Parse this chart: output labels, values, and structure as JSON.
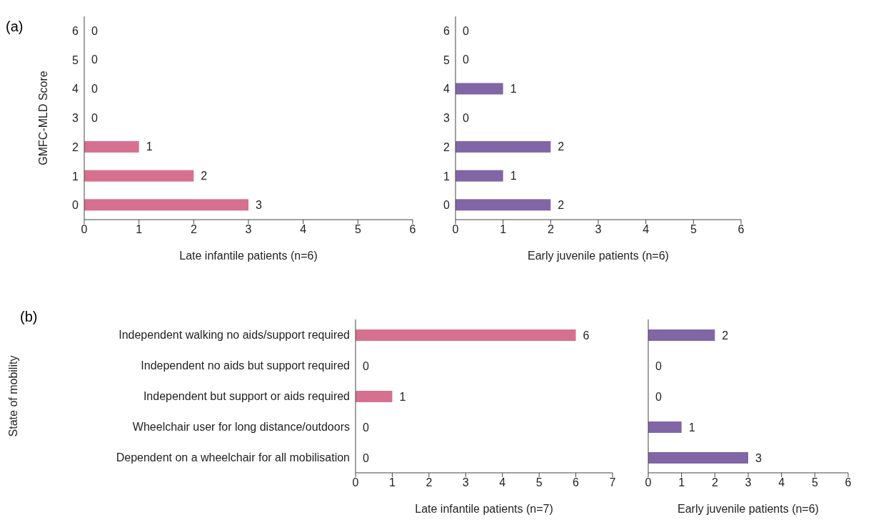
{
  "chart_data": [
    {
      "type": "bar",
      "orientation": "horizontal",
      "categories": [
        "6",
        "5",
        "4",
        "3",
        "2",
        "1",
        "0"
      ],
      "values": [
        0,
        0,
        0,
        0,
        1,
        2,
        3
      ],
      "color": "#d6708f",
      "xlim": [
        0,
        6
      ],
      "xticks": [
        0,
        1,
        2,
        3,
        4,
        5,
        6
      ],
      "xlabel": "Late infantile patients (n=6)",
      "ylabel": "GMFC-MLD  Score",
      "data_labels": true,
      "grid": false,
      "annotations": [
        "(a)"
      ]
    },
    {
      "type": "bar",
      "orientation": "horizontal",
      "categories": [
        "6",
        "5",
        "4",
        "3",
        "2",
        "1",
        "0"
      ],
      "values": [
        0,
        0,
        1,
        0,
        2,
        1,
        2
      ],
      "color": "#8166a6",
      "xlim": [
        0,
        6
      ],
      "xticks": [
        0,
        1,
        2,
        3,
        4,
        5,
        6
      ],
      "xlabel": "Early juvenile patients (n=6)",
      "data_labels": true,
      "grid": false
    },
    {
      "type": "bar",
      "orientation": "horizontal",
      "categories": [
        "Independent walking no aids/support required",
        "Independent no aids but support required",
        "Independent but support or aids required",
        "Wheelchair user for long distance/outdoors",
        "Dependent on a wheelchair for all mobilisation"
      ],
      "values": [
        6,
        0,
        1,
        0,
        0
      ],
      "color": "#d6708f",
      "xlim": [
        0,
        7
      ],
      "xticks": [
        0,
        1,
        2,
        3,
        4,
        5,
        6,
        7
      ],
      "xlabel": "Late infantile patients (n=7)",
      "ylabel": "State of mobility",
      "data_labels": true,
      "grid": false,
      "annotations": [
        "(b)"
      ]
    },
    {
      "type": "bar",
      "orientation": "horizontal",
      "categories": [
        null,
        null,
        null,
        null,
        null
      ],
      "values": [
        2,
        0,
        0,
        1,
        3
      ],
      "color": "#8166a6",
      "xlim": [
        0,
        6
      ],
      "xticks": [
        0,
        1,
        2,
        3,
        4,
        5,
        6
      ],
      "xlabel": "Early juvenile patients (n=6)",
      "data_labels": true,
      "grid": false,
      "tick_labels": "x"
    }
  ]
}
